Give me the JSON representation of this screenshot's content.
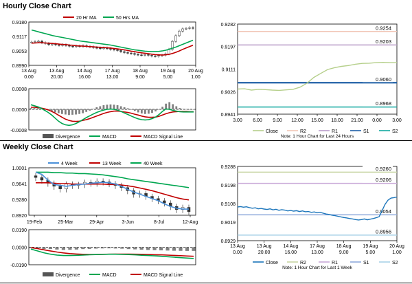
{
  "sections": {
    "hourly_title": "Hourly Close Chart",
    "weekly_title": "Weekly Close Chart"
  },
  "colors": {
    "ma_short": "#c00000",
    "ma_long": "#00a650",
    "ma_mid": "#4a90d9",
    "price": "#333333",
    "close_line": "#b5cf8a",
    "weekly_close": "#1b75bb",
    "r2": "#f2c6b6",
    "r1": "#b99bc9",
    "s1": "#1f5fa6",
    "s2": "#13a9a0",
    "r2_w": "#c9d6a5",
    "r1_w": "#c9a8d8",
    "s1_w": "#8faadc",
    "s2_w": "#a9d2e8",
    "divergence": "#808080",
    "macd": "#00a650",
    "signal": "#c00000"
  },
  "chart_data": [
    {
      "id": "hourly-ma",
      "type": "candlestick",
      "legend": [
        "20 Hr MA",
        "50 Hrs MA"
      ],
      "yticks": [
        "0.9180",
        "0.9117",
        "0.9053",
        "0.8990"
      ],
      "ylim": [
        0.899,
        0.918
      ],
      "xticks": [
        [
          "13 Aug",
          "0.00"
        ],
        [
          "13 Aug",
          "20.00"
        ],
        [
          "14 Aug",
          "16.00"
        ],
        [
          "17 Aug",
          "13.00"
        ],
        [
          "18 Aug",
          "9.00"
        ],
        [
          "19 Aug",
          "5.00"
        ],
        [
          "20 Aug",
          "1.00"
        ]
      ],
      "close": [
        0.9092,
        0.9094,
        0.9096,
        0.9089,
        0.9086,
        0.9081,
        0.9083,
        0.908,
        0.9078,
        0.908,
        0.9077,
        0.9074,
        0.9072,
        0.9075,
        0.9073,
        0.9076,
        0.9073,
        0.9071,
        0.9068,
        0.9066,
        0.9064,
        0.9066,
        0.9063,
        0.906,
        0.9058,
        0.9055,
        0.905,
        0.9046,
        0.9044,
        0.9042,
        0.9038,
        0.9036,
        0.9035,
        0.9037,
        0.9034,
        0.9031,
        0.903,
        0.9033,
        0.9035,
        0.904,
        0.906,
        0.9095,
        0.912,
        0.914,
        0.915,
        0.9152,
        0.9155,
        0.9153
      ],
      "ma20": [
        0.9087,
        0.9088,
        0.9089,
        0.9089,
        0.9088,
        0.9087,
        0.9086,
        0.9085,
        0.9083,
        0.9082,
        0.9081,
        0.9079,
        0.9078,
        0.9076,
        0.9075,
        0.9074,
        0.9073,
        0.9072,
        0.9071,
        0.907,
        0.9069,
        0.9068,
        0.9067,
        0.9066,
        0.9064,
        0.9062,
        0.906,
        0.9058,
        0.9055,
        0.9052,
        0.905,
        0.9047,
        0.9045,
        0.9043,
        0.9041,
        0.9039,
        0.9037,
        0.9036,
        0.9035,
        0.9036,
        0.9038,
        0.9042,
        0.9047,
        0.9053,
        0.906,
        0.9066,
        0.9072,
        0.9078
      ],
      "ma50": [
        0.9145,
        0.9141,
        0.9137,
        0.9133,
        0.9129,
        0.9125,
        0.9121,
        0.9118,
        0.9115,
        0.9112,
        0.9109,
        0.9106,
        0.9103,
        0.91,
        0.9097,
        0.9095,
        0.9093,
        0.9091,
        0.9089,
        0.9087,
        0.9085,
        0.9083,
        0.9081,
        0.9079,
        0.9076,
        0.9073,
        0.907,
        0.9067,
        0.9064,
        0.9061,
        0.9058,
        0.9056,
        0.9054,
        0.9052,
        0.9051,
        0.905,
        0.905,
        0.9051,
        0.9053,
        0.9056,
        0.906,
        0.9065,
        0.907,
        0.9076,
        0.9082,
        0.9088,
        0.9094,
        0.91
      ]
    },
    {
      "id": "hourly-macd",
      "type": "macd",
      "legend": [
        "Divergence",
        "MACD",
        "MACD Signal Line"
      ],
      "yticks": [
        "0.0008",
        "0.0000",
        "-0.0008"
      ],
      "ylim": [
        -0.0008,
        0.0008
      ],
      "divergence": [
        5e-05,
        5e-05,
        4e-05,
        2e-05,
        1e-05,
        -4e-05,
        -8e-05,
        -0.00012,
        -0.00015,
        -0.00018,
        -0.0002,
        -0.00022,
        -0.00021,
        -0.0002,
        -0.00018,
        -0.00015,
        -0.0001,
        -5e-05,
        2e-05,
        8e-05,
        0.00012,
        0.00016,
        0.00018,
        0.00019,
        0.00018,
        0.00016,
        0.00012,
        8e-05,
        4e-05,
        0.0,
        -6e-05,
        -0.00012,
        -0.00016,
        -0.00018,
        -0.00017,
        -0.00014,
        -8e-05,
        0.0,
        0.0001,
        0.00022,
        0.00028,
        0.0002,
        0.00012,
        5e-05,
        2e-05,
        1e-05,
        0.0,
        0.0
      ],
      "macd": [
        0.00018,
        0.00014,
        0.0001,
        4e-05,
        -4e-05,
        -0.00012,
        -0.00022,
        -0.00034,
        -0.00046,
        -0.00055,
        -0.0006,
        -0.00062,
        -0.0006,
        -0.00055,
        -0.00048,
        -0.0004,
        -0.00032,
        -0.00025,
        -0.00018,
        -0.00012,
        -7e-05,
        -3e-05,
        0.0,
        1e-05,
        0.0,
        -3e-05,
        -8e-05,
        -0.00014,
        -0.0002,
        -0.00026,
        -0.00032,
        -0.00037,
        -0.0004,
        -0.00041,
        -0.0004,
        -0.00036,
        -0.0003,
        -0.0002,
        -8e-05,
        2e-05,
        0.0,
        -4e-05,
        -7e-05,
        -9e-05,
        -0.0001,
        -0.0001,
        -0.0001,
        -0.0001
      ],
      "signal": [
        8e-05,
        8e-05,
        7e-05,
        5e-05,
        2e-05,
        -2e-05,
        -8e-05,
        -0.00015,
        -0.00023,
        -0.00031,
        -0.00038,
        -0.00043,
        -0.00046,
        -0.00047,
        -0.00046,
        -0.00043,
        -0.0004,
        -0.00036,
        -0.00031,
        -0.00026,
        -0.00021,
        -0.00016,
        -0.00012,
        -9e-05,
        -7e-05,
        -7e-05,
        -8e-05,
        -0.0001,
        -0.00012,
        -0.00015,
        -0.00019,
        -0.00022,
        -0.00026,
        -0.00029,
        -0.00031,
        -0.00031,
        -0.0003,
        -0.00027,
        -0.00022,
        -0.00017,
        -0.00013,
        -0.0001,
        -9e-05,
        -8e-05,
        -8e-05,
        -8e-05,
        -9e-05,
        -9e-05
      ]
    },
    {
      "id": "hourly-pivot",
      "type": "line",
      "legend": [
        "Close",
        "R2",
        "R1",
        "S1",
        "S2"
      ],
      "note": "Note: 1 Hour Chart for Last 24 Hours",
      "yticks": [
        "0.9282",
        "0.9197",
        "0.9111",
        "0.9026",
        "0.8941"
      ],
      "ylim": [
        0.8941,
        0.9282
      ],
      "xticks": [
        "3.00",
        "6.00",
        "9.00",
        "12.00",
        "15.00",
        "18.00",
        "21.00",
        "0.00",
        "3.00"
      ],
      "close": [
        0.9036,
        0.9037,
        0.9032,
        0.9035,
        0.9034,
        0.9032,
        0.9031,
        0.9033,
        0.9035,
        0.9043,
        0.9058,
        0.908,
        0.9095,
        0.911,
        0.9117,
        0.9122,
        0.9125,
        0.913,
        0.9133,
        0.9134,
        0.9136,
        0.9137,
        0.9136,
        0.9136
      ],
      "levels": [
        {
          "name": "R2",
          "value": 0.9254,
          "label": "0.9254"
        },
        {
          "name": "R1",
          "value": 0.9203,
          "label": "0.9203"
        },
        {
          "name": "S1",
          "value": 0.906,
          "label": "0.9060"
        },
        {
          "name": "S2",
          "value": 0.8968,
          "label": "0.8968"
        }
      ]
    },
    {
      "id": "weekly-ma",
      "type": "candlestick",
      "legend": [
        "4 Week",
        "13 Week",
        "40 Week"
      ],
      "yticks": [
        "1.0001",
        "0.9641",
        "0.9280",
        "0.8920"
      ],
      "ylim": [
        0.892,
        1.0001
      ],
      "xticks": [
        "19-Feb",
        "25-Mar",
        "29-Apr",
        "3-Jun",
        "8-Jul",
        "12-Aug"
      ],
      "close": [
        0.978,
        0.972,
        0.965,
        0.958,
        0.952,
        0.963,
        0.96,
        0.962,
        0.967,
        0.965,
        0.97,
        0.968,
        0.964,
        0.96,
        0.955,
        0.948,
        0.94,
        0.942,
        0.935,
        0.93,
        0.925,
        0.92,
        0.912,
        0.905,
        0.91,
        0.9
      ],
      "ma4": [
        0.99,
        0.985,
        0.972,
        0.962,
        0.96,
        0.958,
        0.96,
        0.962,
        0.963,
        0.965,
        0.966,
        0.967,
        0.966,
        0.963,
        0.958,
        0.951,
        0.945,
        0.94,
        0.935,
        0.93,
        0.925,
        0.918,
        0.912,
        0.908,
        0.906,
        0.906
      ],
      "ma13": [
        0.966,
        0.966,
        0.966,
        0.965,
        0.964,
        0.964,
        0.963,
        0.963,
        0.963,
        0.963,
        0.963,
        0.963,
        0.962,
        0.962,
        0.961,
        0.959,
        0.957,
        0.954,
        0.951,
        0.948,
        0.944,
        0.94,
        0.936,
        0.932,
        0.929,
        0.927
      ],
      "ma40": [
        0.99,
        0.99,
        0.99,
        0.989,
        0.989,
        0.988,
        0.988,
        0.987,
        0.987,
        0.986,
        0.985,
        0.984,
        0.982,
        0.98,
        0.978,
        0.975,
        0.973,
        0.971,
        0.969,
        0.967,
        0.965,
        0.963,
        0.961,
        0.959,
        0.957,
        0.955
      ]
    },
    {
      "id": "weekly-macd",
      "type": "macd",
      "legend": [
        "Divergence",
        "MACD",
        "MACD Signal Line"
      ],
      "yticks": [
        "0.0190",
        "0.0000",
        "-0.0190"
      ],
      "ylim": [
        -0.019,
        0.019
      ],
      "divergence": [
        -0.001,
        -0.0015,
        -0.002,
        -0.002,
        -0.0025,
        -0.003,
        -0.0028,
        -0.0025,
        -0.002,
        -0.0018,
        -0.0015,
        -0.0013,
        -0.0012,
        -0.0014,
        -0.0016,
        -0.002,
        -0.0023,
        -0.0027,
        -0.003,
        -0.0032,
        -0.0034,
        -0.0036,
        -0.0038,
        -0.0039,
        -0.004,
        -0.004
      ],
      "macd": [
        -0.002,
        -0.004,
        -0.006,
        -0.0075,
        -0.0085,
        -0.009,
        -0.009,
        -0.0088,
        -0.0085,
        -0.0082,
        -0.008,
        -0.0078,
        -0.0076,
        -0.0076,
        -0.0078,
        -0.008,
        -0.0083,
        -0.0087,
        -0.009,
        -0.0094,
        -0.0098,
        -0.0103,
        -0.0108,
        -0.0113,
        -0.0118,
        -0.0122
      ],
      "signal": [
        -0.0005,
        -0.0015,
        -0.0028,
        -0.004,
        -0.0052,
        -0.0062,
        -0.0069,
        -0.0074,
        -0.0077,
        -0.0078,
        -0.0078,
        -0.0077,
        -0.0076,
        -0.0075,
        -0.0075,
        -0.0075,
        -0.0076,
        -0.0077,
        -0.0079,
        -0.0081,
        -0.0083,
        -0.0086,
        -0.0089,
        -0.0092,
        -0.0095,
        -0.0098
      ]
    },
    {
      "id": "weekly-pivot",
      "type": "line",
      "legend": [
        "Close",
        "R2",
        "R1",
        "S1",
        "S2"
      ],
      "note": "Note: 1 Hour Chart for Last 1 Week",
      "yticks": [
        "0.9288",
        "0.9198",
        "0.9108",
        "0.9019",
        "0.8929"
      ],
      "ylim": [
        0.8929,
        0.9288
      ],
      "xticks": [
        [
          "13 Aug",
          "0.00"
        ],
        [
          "13 Aug",
          "20.00"
        ],
        [
          "14 Aug",
          "16.00"
        ],
        [
          "17 Aug",
          "13.00"
        ],
        [
          "18 Aug",
          "9.00"
        ],
        [
          "19 Aug",
          "5.00"
        ],
        [
          "20 Aug",
          "1.00"
        ]
      ],
      "close": [
        0.9092,
        0.9094,
        0.9091,
        0.9093,
        0.9089,
        0.9086,
        0.9088,
        0.9083,
        0.9085,
        0.9082,
        0.908,
        0.9083,
        0.9078,
        0.9081,
        0.9076,
        0.9079,
        0.9077,
        0.9073,
        0.9075,
        0.9072,
        0.9074,
        0.907,
        0.9073,
        0.9069,
        0.907,
        0.9066,
        0.9068,
        0.9064,
        0.9066,
        0.9062,
        0.9058,
        0.9056,
        0.9052,
        0.905,
        0.9047,
        0.9044,
        0.9041,
        0.9039,
        0.9036,
        0.9034,
        0.9031,
        0.9029,
        0.9031,
        0.9034,
        0.903,
        0.9033,
        0.9036,
        0.904,
        0.9045,
        0.9075,
        0.9105,
        0.9125,
        0.9135,
        0.9137,
        0.914
      ],
      "levels": [
        {
          "name": "R2",
          "value": 0.926,
          "label": "0.9260"
        },
        {
          "name": "R1",
          "value": 0.9206,
          "label": "0.9206"
        },
        {
          "name": "S1",
          "value": 0.9054,
          "label": "0.9054"
        },
        {
          "name": "S2",
          "value": 0.8956,
          "label": "0.8956"
        }
      ]
    }
  ]
}
